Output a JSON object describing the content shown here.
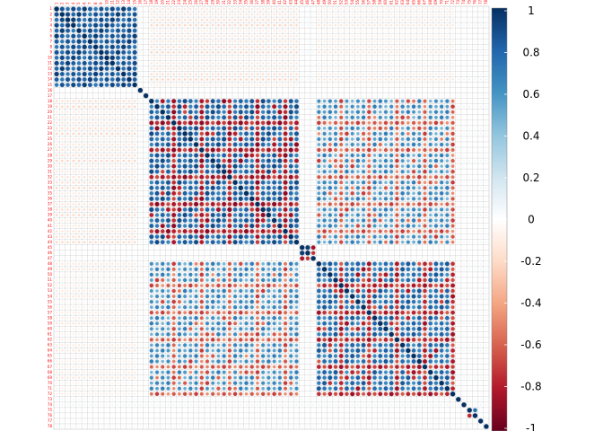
{
  "chart_data": {
    "type": "heatmap",
    "variant": "correlation-matrix-circles",
    "title": "",
    "n": 78,
    "row_labels": [
      "1",
      "2",
      "3",
      "4",
      "5",
      "6",
      "7",
      "8",
      "9",
      "10",
      "11",
      "12",
      "13",
      "14",
      "15",
      "16",
      "17",
      "18",
      "19",
      "20",
      "21",
      "22",
      "23",
      "24",
      "25",
      "26",
      "27",
      "28",
      "29",
      "30",
      "31",
      "32",
      "33",
      "34",
      "35",
      "36",
      "37",
      "38",
      "39",
      "40",
      "41",
      "42",
      "43",
      "44",
      "45",
      "46",
      "47",
      "48",
      "49",
      "50",
      "51",
      "52",
      "53",
      "54",
      "55",
      "56",
      "57",
      "58",
      "59",
      "60",
      "61",
      "62",
      "63",
      "64",
      "65",
      "66",
      "67",
      "68",
      "69",
      "70",
      "71",
      "72",
      "73",
      "74",
      "75",
      "76",
      "77",
      "78"
    ],
    "col_labels": [
      "1",
      "2",
      "3",
      "4",
      "5",
      "6",
      "7",
      "8",
      "9",
      "10",
      "11",
      "12",
      "13",
      "14",
      "15",
      "16",
      "17",
      "18",
      "19",
      "20",
      "21",
      "22",
      "23",
      "24",
      "25",
      "26",
      "27",
      "28",
      "29",
      "30",
      "31",
      "32",
      "33",
      "34",
      "35",
      "36",
      "37",
      "38",
      "39",
      "40",
      "41",
      "42",
      "43",
      "44",
      "45",
      "46",
      "47",
      "48",
      "49",
      "50",
      "51",
      "52",
      "53",
      "54",
      "55",
      "56",
      "57",
      "58",
      "59",
      "60",
      "61",
      "62",
      "63",
      "64",
      "65",
      "66",
      "67",
      "68",
      "69",
      "70",
      "71",
      "72",
      "73",
      "74",
      "75",
      "76",
      "77",
      "78"
    ],
    "value_range": [
      -1,
      1
    ],
    "blocks": [
      {
        "rows": [
          1,
          15
        ],
        "cols": [
          1,
          15
        ],
        "value": 0.95
      },
      {
        "rows": [
          18,
          44
        ],
        "cols": [
          18,
          44
        ],
        "value": 0.9
      },
      {
        "rows": [
          45,
          47
        ],
        "cols": [
          45,
          47
        ],
        "value": 0.95
      },
      {
        "rows": [
          48,
          72
        ],
        "cols": [
          48,
          72
        ],
        "value": 0.85
      },
      {
        "rows": [
          75,
          76
        ],
        "cols": [
          75,
          76
        ],
        "value": 0.95
      },
      {
        "rows": [
          18,
          44
        ],
        "cols": [
          48,
          72
        ],
        "value": 0.7
      },
      {
        "rows": [
          48,
          72
        ],
        "cols": [
          18,
          44
        ],
        "value": 0.7
      },
      {
        "rows": [
          1,
          15
        ],
        "cols": [
          18,
          44
        ],
        "value": -0.15
      },
      {
        "rows": [
          18,
          44
        ],
        "cols": [
          1,
          15
        ],
        "value": -0.15
      },
      {
        "rows": [
          1,
          15
        ],
        "cols": [
          48,
          72
        ],
        "value": -0.1
      },
      {
        "rows": [
          48,
          72
        ],
        "cols": [
          1,
          15
        ],
        "value": -0.1
      }
    ],
    "colorbar": {
      "ticks": [
        "1",
        "0.8",
        "0.6",
        "0.4",
        "0.2",
        "0",
        "-0.2",
        "-0.4",
        "-0.6",
        "-0.8",
        "-1"
      ],
      "palette": [
        "#67001F",
        "#B2182B",
        "#D6604D",
        "#F4A582",
        "#FDDBC7",
        "#FFFFFF",
        "#D1E5F0",
        "#92C5DE",
        "#4393C3",
        "#2166AC",
        "#053061"
      ]
    },
    "label_color": "#FF0000",
    "grid_color": "#CCCCCC"
  }
}
